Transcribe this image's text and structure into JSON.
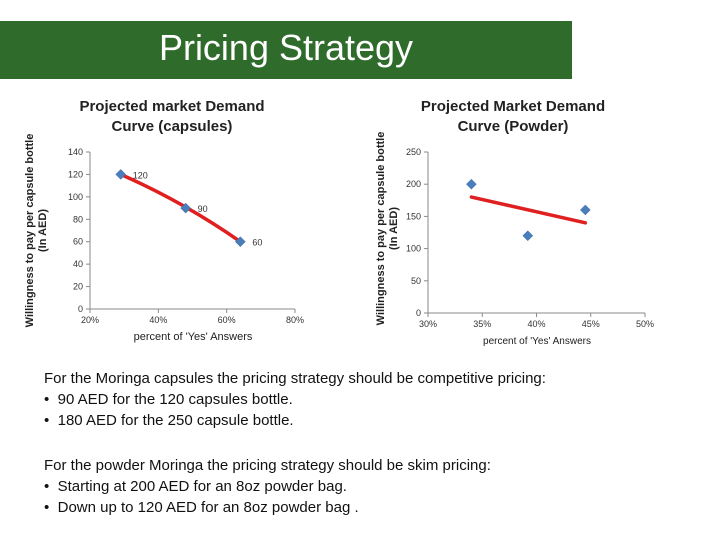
{
  "slide": {
    "title": "Pricing Strategy",
    "accent_color": "#2f6b2b"
  },
  "chart_data": [
    {
      "type": "scatter",
      "title": "Projected market Demand Curve (capsules)",
      "xlabel": "percent of 'Yes' Answers",
      "ylabel": "Willingness to pay per capsule bottle (In AED)",
      "xlim": [
        0.2,
        0.8
      ],
      "ylim": [
        0,
        140
      ],
      "x_ticks": [
        0.2,
        0.4,
        0.6,
        0.8
      ],
      "x_tick_labels": [
        "20%",
        "40%",
        "60%",
        "80%"
      ],
      "y_ticks": [
        0,
        20,
        40,
        60,
        80,
        100,
        120,
        140
      ],
      "y_tick_labels": [
        "0",
        "20",
        "40",
        "60",
        "80",
        "100",
        "120",
        "140"
      ],
      "points": [
        {
          "x": 0.29,
          "y": 120,
          "label": "120"
        },
        {
          "x": 0.48,
          "y": 90,
          "label": "90"
        },
        {
          "x": 0.64,
          "y": 60,
          "label": "60"
        }
      ],
      "trendline": {
        "type": "polynomial",
        "color": "#e02020"
      },
      "marker_color": "#4a7ebb",
      "grid": false,
      "legend": "none"
    },
    {
      "type": "scatter",
      "title": "Projected Market Demand Curve (Powder)",
      "xlabel": "percent of 'Yes' Answers",
      "ylabel": "Willingness to pay per capsule bottle (In AED)",
      "xlim": [
        0.3,
        0.5
      ],
      "ylim": [
        0,
        250
      ],
      "x_ticks": [
        0.3,
        0.35,
        0.4,
        0.45,
        0.5
      ],
      "x_tick_labels": [
        "30%",
        "35%",
        "40%",
        "45%",
        "50%"
      ],
      "y_ticks": [
        0,
        50,
        100,
        150,
        200,
        250
      ],
      "y_tick_labels": [
        "0",
        "50",
        "100",
        "150",
        "200",
        "250"
      ],
      "points": [
        {
          "x": 0.34,
          "y": 200
        },
        {
          "x": 0.392,
          "y": 120
        },
        {
          "x": 0.445,
          "y": 160
        }
      ],
      "trendline": {
        "type": "linear",
        "color": "#e02020",
        "from": [
          0.34,
          180
        ],
        "to": [
          0.445,
          140
        ]
      },
      "marker_color": "#4a7ebb",
      "grid": false,
      "legend": "none"
    }
  ],
  "text": {
    "para1_lead": "For the Moringa capsules the pricing strategy should be ",
    "para1_strategy": "competitive pricing",
    "para1_colon": ":",
    "para1_bullets": [
      "90 AED for the 120 capsules bottle.",
      "180 AED for the 250 capsule bottle."
    ],
    "para2_lead": "For the powder Moringa the pricing strategy should be ",
    "para2_strategy": "skim pricing",
    "para2_colon": ":",
    "para2_bullets": [
      "Starting at 200 AED for an 8oz powder bag.",
      "Down up to 120 AED for an 8oz powder bag ."
    ],
    "bullet_glyph": "•"
  }
}
